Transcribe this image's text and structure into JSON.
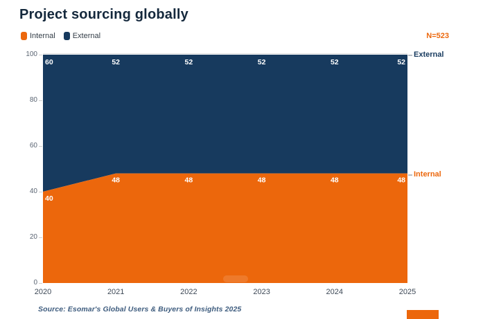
{
  "title": "Project sourcing globally",
  "sample_note": "N=523",
  "legend": [
    {
      "label": "Internal",
      "color_key": "internal"
    },
    {
      "label": "External",
      "color_key": "external"
    }
  ],
  "series_edge_labels": {
    "external": "External",
    "internal": "Internal"
  },
  "source": "Source: Esomar's Global Users & Buyers of Insights 2025",
  "colors": {
    "internal": "#EC670C",
    "external": "#173A5E",
    "title": "#14283C",
    "axis_text": "#5A6472",
    "source_text": "#3E5C7E",
    "data_label": "#FFFFFF",
    "grid_line": "#DCDCDC"
  },
  "chart_data": {
    "type": "area",
    "stacked": true,
    "title": "Project sourcing globally",
    "categories": [
      "2020",
      "2021",
      "2022",
      "2023",
      "2024",
      "2025"
    ],
    "series": [
      {
        "name": "Internal",
        "color_key": "internal",
        "values": [
          40,
          48,
          48,
          48,
          48,
          48
        ]
      },
      {
        "name": "External",
        "color_key": "external",
        "values": [
          60,
          52,
          52,
          52,
          52,
          52
        ]
      }
    ],
    "ylim": [
      0,
      100
    ],
    "yticks": [
      0,
      20,
      40,
      60,
      80,
      100
    ],
    "xlabel": "",
    "ylabel": "",
    "grid": false,
    "legend_position": "top-left",
    "annotations": [
      "N=523"
    ]
  }
}
